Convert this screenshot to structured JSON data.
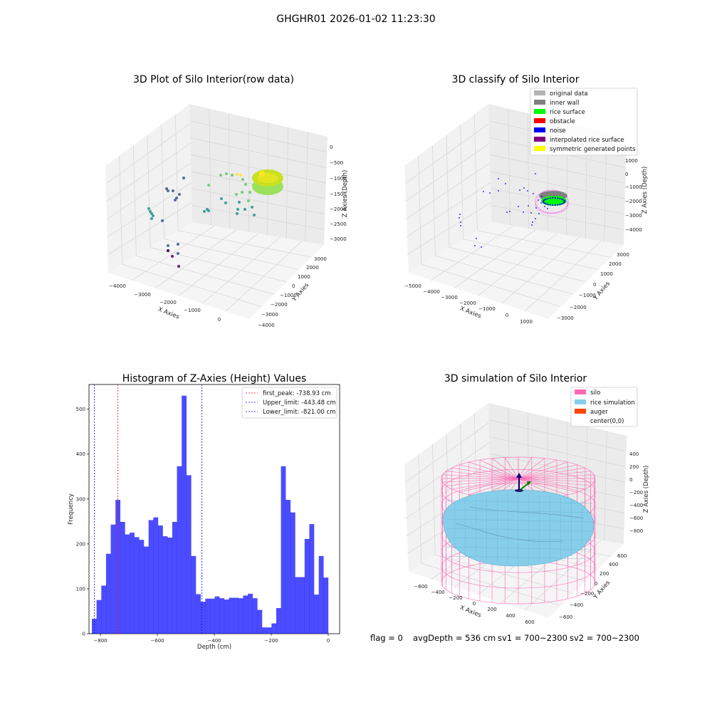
{
  "figure": {
    "suptitle": "GHGHR01 2026-01-02 11:23:30",
    "footer": {
      "flag": "flag = 0",
      "avg_depth": "avgDepth = 536 cm",
      "sv1": "sv1 = 700~2300",
      "sv2": "sv2 = 700~2300"
    }
  },
  "chart_data": [
    {
      "type": "scatter",
      "projection": "3d",
      "title": "3D Plot of Silo Interior(row data)",
      "xlabel": "X Axies",
      "ylabel": "Y Axies",
      "zlabel": "Z Axies (Depth)",
      "x_ticks": [
        "−4000",
        "−3000",
        "−2000",
        "−1000",
        "0"
      ],
      "y_ticks": [
        "−4000",
        "−3000",
        "−2000",
        "−1000",
        "0",
        "1000",
        "2000",
        "3000"
      ],
      "z_ticks": [
        "−3000",
        "−2500",
        "−2000",
        "−1500",
        "−1000",
        "−500",
        "0"
      ],
      "colormap": [
        "#440154",
        "#3b528b",
        "#21918c",
        "#5ec962",
        "#fde725"
      ],
      "grid": true
    },
    {
      "type": "scatter",
      "projection": "3d",
      "title": "3D classify of Silo Interior",
      "xlabel": "X Axies",
      "ylabel": "Y Axies",
      "zlabel": "Z Axies (Depth)",
      "x_ticks": [
        "−5000",
        "−4000",
        "−3000",
        "−2000",
        "−1000",
        "0",
        "1000"
      ],
      "y_ticks": [
        "−3000",
        "−2000",
        "−1000",
        "0",
        "1000",
        "2000",
        "3000"
      ],
      "z_ticks": [
        "−4000",
        "−3000",
        "−2000",
        "−1000",
        "0",
        "1000"
      ],
      "legend": [
        {
          "label": "original data",
          "color": "#b3b3b3"
        },
        {
          "label": "inner wall",
          "color": "#808080"
        },
        {
          "label": "rice surface",
          "color": "#00ff00"
        },
        {
          "label": "obstacle",
          "color": "#ff0000"
        },
        {
          "label": "noise",
          "color": "#0000ff"
        },
        {
          "label": "interpolated rice surface",
          "color": "#800080"
        },
        {
          "label": "symmetric generated points",
          "color": "#ffff00"
        }
      ],
      "legend_loc": "upper right",
      "grid": true
    },
    {
      "type": "bar",
      "title": "Histogram of Z-Axies (Height) Values",
      "xlabel": "Depth (cm)",
      "ylabel": "Frequency",
      "xlim": [
        -840,
        40
      ],
      "ylim": [
        0,
        555
      ],
      "bar_color": "#0000ff",
      "bin_start": -830,
      "bin_width": 16.6,
      "values": [
        33,
        75,
        107,
        178,
        243,
        298,
        249,
        221,
        225,
        215,
        209,
        194,
        253,
        259,
        241,
        217,
        214,
        249,
        373,
        530,
        353,
        173,
        88,
        71,
        78,
        78,
        83,
        79,
        76,
        80,
        80,
        79,
        85,
        89,
        79,
        53,
        14,
        14,
        23,
        57,
        373,
        298,
        270,
        126,
        126,
        211,
        244,
        87,
        173,
        125
      ],
      "x_ticks": [
        -800,
        -600,
        -400,
        -200,
        0
      ],
      "x_tick_labels": [
        "−800",
        "−600",
        "−400",
        "−200",
        "0"
      ],
      "y_ticks": [
        0,
        100,
        200,
        300,
        400,
        500
      ],
      "vlines": [
        {
          "x": -738.93,
          "color": "#ff0000",
          "label": "first_peak: -738.93 cm"
        },
        {
          "x": -443.48,
          "color": "#0000ff",
          "label": "Upper_limit: -443.48 cm"
        },
        {
          "x": -821.0,
          "color": "#0000ff",
          "label": "Lower_limit: -821.00 cm"
        }
      ],
      "legend_loc": "upper right",
      "grid": false
    },
    {
      "type": "surface",
      "projection": "3d",
      "title": "3D simulation of Silo Interior",
      "xlabel": "X Axies",
      "ylabel": "Y Axies",
      "zlabel": "Z Axies (Depth)",
      "x_ticks": [
        "−600",
        "−400",
        "−200",
        "0",
        "200",
        "400",
        "600"
      ],
      "y_ticks": [
        "−600",
        "−400",
        "−200",
        "0",
        "200",
        "400",
        "600"
      ],
      "z_ticks": [
        "−800",
        "−600",
        "−400",
        "−200",
        "0",
        "200",
        "400"
      ],
      "legend": [
        {
          "label": "silo",
          "color": "#ff69b4"
        },
        {
          "label": "rice simulation",
          "color": "#87ceeb"
        },
        {
          "label": "auger",
          "color": "#ff4500"
        },
        {
          "label": "center(0,0)",
          "color": "none"
        }
      ],
      "legend_loc": "upper right",
      "grid": true
    }
  ]
}
